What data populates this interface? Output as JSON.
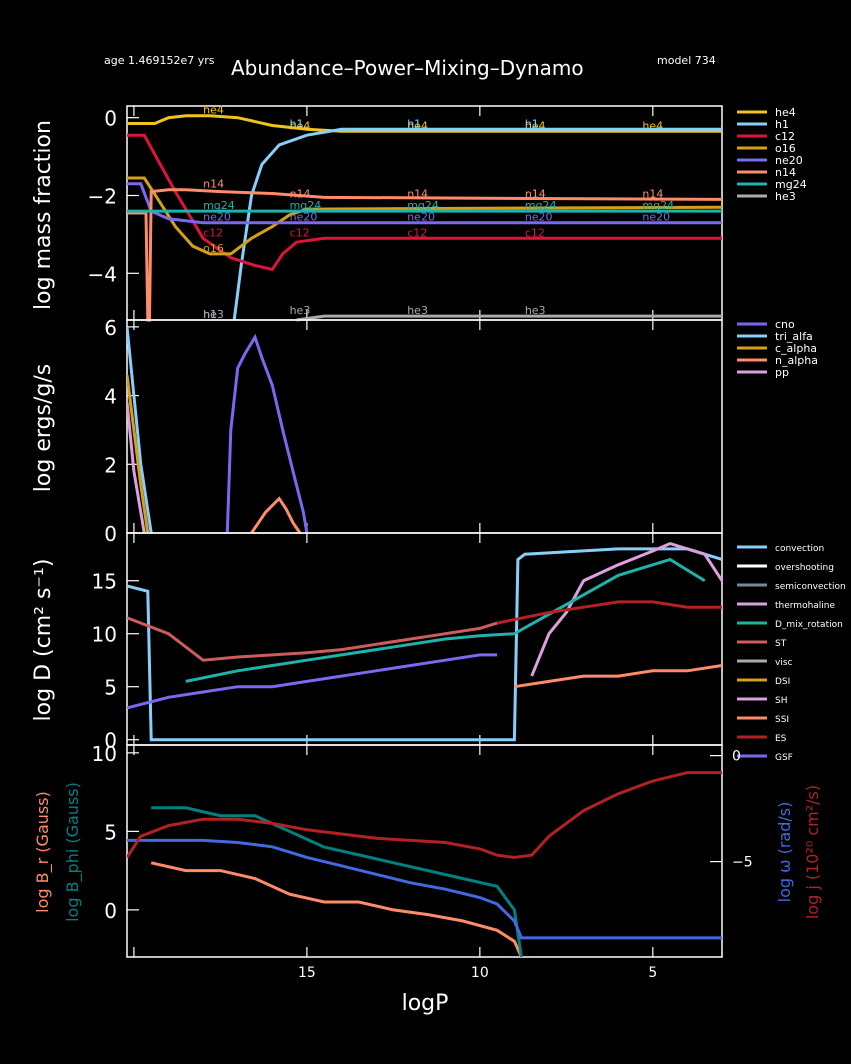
{
  "header": {
    "age": "age 1.469152e7 yrs",
    "title": "Abundance–Power–Mixing–Dynamo",
    "model": "model 734"
  },
  "chart_data": [
    {
      "type": "line",
      "panel": "abundance",
      "ylabel": "log mass fraction",
      "xlim": [
        20.2,
        3.0
      ],
      "ylim": [
        -5.2,
        0.3
      ],
      "yticks": [
        0,
        -2,
        -4
      ],
      "series": [
        {
          "name": "he4",
          "color": "#f0c419",
          "x": [
            20.2,
            19.4,
            19.0,
            18.5,
            17.8,
            17.0,
            16.0,
            15.0,
            14.0,
            3.0
          ],
          "y": [
            -0.15,
            -0.15,
            0.0,
            0.05,
            0.05,
            0.0,
            -0.2,
            -0.3,
            -0.35,
            -0.35
          ],
          "labels": [
            "he4",
            "he4",
            "he4",
            "he4",
            "he4"
          ]
        },
        {
          "name": "h1",
          "color": "#87cefa",
          "x": [
            17.1,
            16.9,
            16.6,
            16.3,
            15.8,
            15.0,
            14.0,
            3.0
          ],
          "y": [
            -5.2,
            -3.8,
            -2.0,
            -1.2,
            -0.7,
            -0.45,
            -0.3,
            -0.3
          ],
          "labels": [
            "h1",
            "h1",
            "h1",
            "h1"
          ]
        },
        {
          "name": "c12",
          "color": "#dc143c",
          "x": [
            20.2,
            19.7,
            19.3,
            18.8,
            18.0,
            17.2,
            16.5,
            16.0,
            15.7,
            15.3,
            14.5,
            3.0
          ],
          "y": [
            -0.45,
            -0.45,
            -1.1,
            -1.9,
            -3.1,
            -3.6,
            -3.8,
            -3.9,
            -3.5,
            -3.2,
            -3.1,
            -3.1
          ],
          "labels": [
            "c12",
            "c12",
            "c12",
            "c12"
          ]
        },
        {
          "name": "o16",
          "color": "#d4a017",
          "x": [
            20.2,
            19.7,
            19.3,
            18.8,
            18.3,
            17.8,
            17.2,
            16.6,
            16.0,
            15.5,
            15.0,
            3.0
          ],
          "y": [
            -1.55,
            -1.55,
            -2.1,
            -2.8,
            -3.3,
            -3.5,
            -3.5,
            -3.1,
            -2.8,
            -2.5,
            -2.35,
            -2.3
          ],
          "labels": [
            "o16"
          ]
        },
        {
          "name": "ne20",
          "color": "#7b68ee",
          "x": [
            20.2,
            19.8,
            19.5,
            19.0,
            18.0,
            16.0,
            3.0
          ],
          "y": [
            -1.7,
            -1.7,
            -2.4,
            -2.6,
            -2.7,
            -2.7,
            -2.7
          ],
          "labels": [
            "ne20",
            "ne20",
            "ne20",
            "ne20",
            "ne20"
          ]
        },
        {
          "name": "n14",
          "color": "#ff8c69",
          "x": [
            20.2,
            19.65,
            19.6,
            19.55,
            19.5,
            19.0,
            18.5,
            17.5,
            16.0,
            14.5,
            3.0
          ],
          "y": [
            -2.45,
            -2.45,
            -5.2,
            -5.2,
            -1.9,
            -1.85,
            -1.85,
            -1.9,
            -1.95,
            -2.05,
            -2.1
          ],
          "labels": [
            "n14",
            "n14",
            "n14",
            "n14",
            "n14"
          ]
        },
        {
          "name": "mg24",
          "color": "#20b2aa",
          "x": [
            20.2,
            3.0
          ],
          "y": [
            -2.4,
            -2.4
          ],
          "labels": [
            "mg24",
            "mg24",
            "mg24",
            "mg24",
            "mg24"
          ]
        },
        {
          "name": "he3",
          "color": "#aaaaaa",
          "x": [
            15.3,
            14.5,
            3.0
          ],
          "y": [
            -5.2,
            -5.1,
            -5.1
          ],
          "labels": [
            "he3",
            "he3",
            "he3",
            "he3"
          ]
        }
      ]
    },
    {
      "type": "line",
      "panel": "power",
      "ylabel": "log ergs/g/s",
      "xlim": [
        20.2,
        3.0
      ],
      "ylim": [
        0,
        6.2
      ],
      "yticks": [
        0,
        2,
        4,
        6
      ],
      "series": [
        {
          "name": "cno",
          "color": "#7b68ee",
          "x": [
            17.3,
            17.2,
            17.0,
            16.8,
            16.5,
            16.3,
            16.0,
            15.7,
            15.4,
            15.1,
            15.0
          ],
          "y": [
            0,
            3.0,
            4.8,
            5.2,
            5.7,
            5.1,
            4.3,
            3.0,
            1.8,
            0.6,
            0
          ]
        },
        {
          "name": "tri_alfa",
          "color": "#87cefa",
          "x": [
            20.2,
            20.0,
            19.8,
            19.5
          ],
          "y": [
            6.0,
            4.0,
            2.0,
            0
          ]
        },
        {
          "name": "c_alpha",
          "color": "#d4a017",
          "x": [
            20.2,
            20.0,
            19.8,
            19.6
          ],
          "y": [
            4.6,
            3.0,
            1.4,
            0
          ]
        },
        {
          "name": "n_alpha",
          "color": "#ff8c69",
          "x": [
            16.6,
            16.4,
            16.2,
            16.0,
            15.8,
            15.6,
            15.4,
            15.2
          ],
          "y": [
            0,
            0.3,
            0.6,
            0.8,
            1.0,
            0.7,
            0.3,
            0
          ]
        },
        {
          "name": "pp",
          "color": "#dda0dd",
          "x": [
            20.2,
            20.0,
            19.7
          ],
          "y": [
            3.8,
            1.8,
            0
          ]
        }
      ]
    },
    {
      "type": "line",
      "panel": "mixing",
      "ylabel": "log D (cm² s⁻¹)",
      "xlim": [
        20.2,
        3.0
      ],
      "ylim": [
        -0.5,
        19.5
      ],
      "yticks": [
        0,
        5,
        10,
        15
      ],
      "series": [
        {
          "name": "convection",
          "color": "#87cefa",
          "x": [
            20.2,
            19.6,
            19.5,
            19.4,
            9.0,
            8.9,
            8.7,
            6.0,
            4.0,
            3.0
          ],
          "y": [
            14.5,
            14.0,
            0,
            0,
            0,
            17.0,
            17.5,
            18.0,
            18.0,
            17.0
          ]
        },
        {
          "name": "overshooting",
          "color": "#ffffff",
          "x": [],
          "y": []
        },
        {
          "name": "semiconvection",
          "color": "#778899",
          "x": [],
          "y": []
        },
        {
          "name": "thermohaline",
          "color": "#dda0dd",
          "x": [
            8.5,
            8.0,
            7.5,
            7.0,
            6.0,
            5.0,
            4.5,
            4.0,
            3.5,
            3.0
          ],
          "y": [
            6.0,
            10.0,
            12.0,
            15.0,
            16.5,
            17.8,
            18.5,
            18.0,
            17.5,
            15.0
          ]
        },
        {
          "name": "D_mix_rotation",
          "color": "#20b2aa",
          "x": [
            18.5,
            17.0,
            16.0,
            15.0,
            14.0,
            13.0,
            12.0,
            11.0,
            10.0,
            9.0,
            6.0,
            5.5,
            5.0,
            4.5,
            4.0,
            3.5
          ],
          "y": [
            5.5,
            6.5,
            7.0,
            7.5,
            8.0,
            8.5,
            9.0,
            9.5,
            9.8,
            10.0,
            15.5,
            16.0,
            16.5,
            17.0,
            16.0,
            15.0
          ]
        },
        {
          "name": "ST",
          "color": "#cd5c5c",
          "x": [
            20.2,
            19.0,
            18.0,
            17.0,
            16.0,
            15.0,
            14.0,
            13.0,
            12.0,
            11.0,
            10.0,
            9.5
          ],
          "y": [
            11.5,
            10.0,
            7.5,
            7.8,
            8.0,
            8.2,
            8.5,
            9.0,
            9.5,
            10.0,
            10.5,
            11.0
          ]
        },
        {
          "name": "visc",
          "color": "#aaaaaa",
          "x": [],
          "y": []
        },
        {
          "name": "DSI",
          "color": "#d4a017",
          "x": [],
          "y": []
        },
        {
          "name": "SH",
          "color": "#dda0dd",
          "x": [],
          "y": []
        },
        {
          "name": "SSI",
          "color": "#ff8c69",
          "x": [
            9.0,
            8.0,
            7.0,
            6.0,
            5.0,
            4.0,
            3.0
          ],
          "y": [
            5.0,
            5.5,
            6.0,
            6.0,
            6.5,
            6.5,
            7.0
          ]
        },
        {
          "name": "ES",
          "color": "#b22222",
          "x": [
            9.5,
            8.0,
            7.0,
            6.0,
            5.0,
            4.0,
            3.0
          ],
          "y": [
            11.0,
            12.0,
            12.5,
            13.0,
            13.0,
            12.5,
            12.5
          ]
        },
        {
          "name": "GSF",
          "color": "#7b68ee",
          "x": [
            20.2,
            19.0,
            18.0,
            17.0,
            16.0,
            15.0,
            14.0,
            13.0,
            12.0,
            11.0,
            10.0,
            9.5
          ],
          "y": [
            3.0,
            4.0,
            4.5,
            5.0,
            5.0,
            5.5,
            6.0,
            6.5,
            7.0,
            7.5,
            8.0,
            8.0
          ]
        }
      ]
    },
    {
      "type": "line",
      "panel": "dynamo",
      "xlabel": "logP",
      "ylabel_left": "log B_r (Gauss)",
      "ylabel_left2": "log B_phi (Gauss)",
      "ylabel_right": "log ω (rad/s)",
      "ylabel_right2": "log j (10²⁰ cm²/s)",
      "xlim": [
        20.2,
        3.0
      ],
      "ylim_left": [
        -3,
        10.5
      ],
      "ylim_right": [
        -9.5,
        0.5
      ],
      "yticks_left": [
        0,
        5,
        10
      ],
      "yticks_right": [
        0,
        -5
      ],
      "xticks": [
        15,
        10,
        5
      ],
      "series": [
        {
          "name": "log B_r",
          "color": "#ff8c69",
          "axis": "left",
          "x": [
            19.5,
            18.5,
            17.5,
            16.5,
            15.5,
            14.5,
            13.5,
            12.5,
            11.5,
            10.5,
            9.5,
            9.0,
            8.8
          ],
          "y": [
            3.0,
            2.5,
            2.5,
            2.0,
            1.0,
            0.5,
            0.5,
            0.0,
            -0.3,
            -0.7,
            -1.3,
            -2.0,
            -3.0
          ]
        },
        {
          "name": "log B_phi",
          "color": "#008080",
          "axis": "left",
          "x": [
            19.5,
            18.5,
            17.5,
            16.5,
            15.5,
            14.5,
            13.5,
            12.5,
            11.5,
            10.5,
            9.5,
            9.0,
            8.8
          ],
          "y": [
            6.5,
            6.5,
            6.0,
            6.0,
            5.0,
            4.0,
            3.5,
            3.0,
            2.5,
            2.0,
            1.5,
            0.0,
            -3.0
          ]
        },
        {
          "name": "log omega",
          "color": "#4169e1",
          "axis": "right",
          "x": [
            20.2,
            19.0,
            18.0,
            17.0,
            16.0,
            15.0,
            14.0,
            13.0,
            12.0,
            11.0,
            10.0,
            9.5,
            9.0,
            8.8,
            3.0
          ],
          "y": [
            -4.0,
            -4.0,
            -4.0,
            -4.1,
            -4.3,
            -4.8,
            -5.2,
            -5.6,
            -6.0,
            -6.3,
            -6.7,
            -7.0,
            -7.8,
            -8.6,
            -8.6
          ]
        },
        {
          "name": "log j",
          "color": "#b22222",
          "axis": "right",
          "x": [
            20.2,
            19.8,
            19.0,
            18.0,
            17.0,
            16.0,
            15.0,
            14.0,
            13.0,
            12.0,
            11.0,
            10.0,
            9.5,
            9.0,
            8.5,
            8.0,
            7.0,
            6.0,
            5.0,
            4.0,
            3.0
          ],
          "y": [
            -4.8,
            -3.8,
            -3.3,
            -3.0,
            -3.0,
            -3.2,
            -3.5,
            -3.7,
            -3.9,
            -4.0,
            -4.1,
            -4.4,
            -4.7,
            -4.8,
            -4.7,
            -3.8,
            -2.6,
            -1.8,
            -1.2,
            -0.8,
            -0.8
          ]
        }
      ]
    }
  ]
}
